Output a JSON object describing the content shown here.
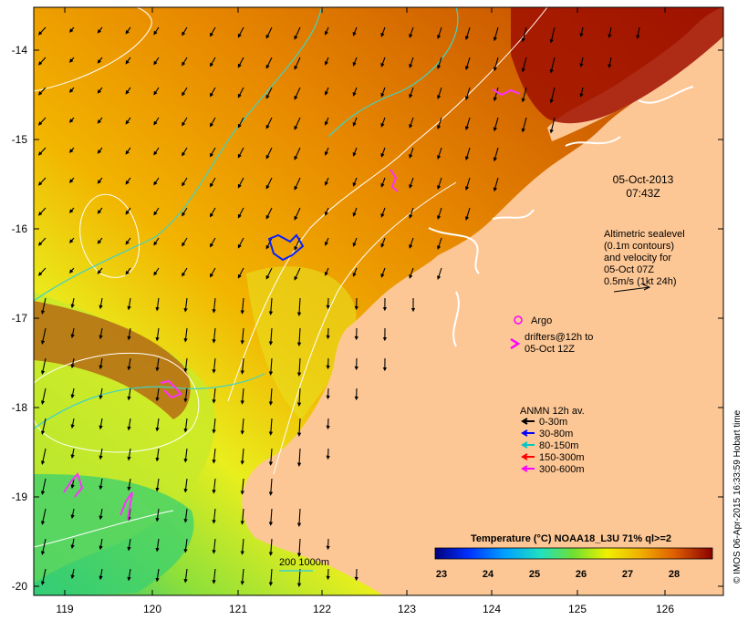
{
  "map": {
    "x_ticks": [
      "119",
      "120",
      "121",
      "122",
      "123",
      "124",
      "125",
      "126"
    ],
    "y_ticks": [
      "-14",
      "-15",
      "-16",
      "-17",
      "-18",
      "-19",
      "-20"
    ],
    "date_line1": "05-Oct-2013",
    "date_line2": "07:43Z",
    "altimetry": {
      "line1": "Altimetric sealevel",
      "line2": "(0.1m contours)",
      "line3": "and velocity for",
      "line4": "05-Oct 07Z",
      "line5": "0.5m/s (1kt 24h)"
    },
    "argo_label": "Argo",
    "drifters": {
      "line1": "drifters@12h to",
      "line2": "05-Oct 12Z"
    },
    "anmn": {
      "title": "ANMN 12h av.",
      "items": [
        {
          "label": "0-30m",
          "color": "#000000"
        },
        {
          "label": "30-80m",
          "color": "#0000ff"
        },
        {
          "label": "80-150m",
          "color": "#00c8c8"
        },
        {
          "label": "150-300m",
          "color": "#ff0000"
        },
        {
          "label": "300-600m",
          "color": "#ff00ff"
        }
      ]
    },
    "isobath_label": "200  1000m",
    "colorbar": {
      "title": "Temperature (°C) NOAA18_L3U 71% ql>=2",
      "ticks": [
        "23",
        "24",
        "25",
        "26",
        "27",
        "28"
      ]
    },
    "credit": "© IMOS 06-Apr-2015 16:33:59 Hobart time"
  }
}
